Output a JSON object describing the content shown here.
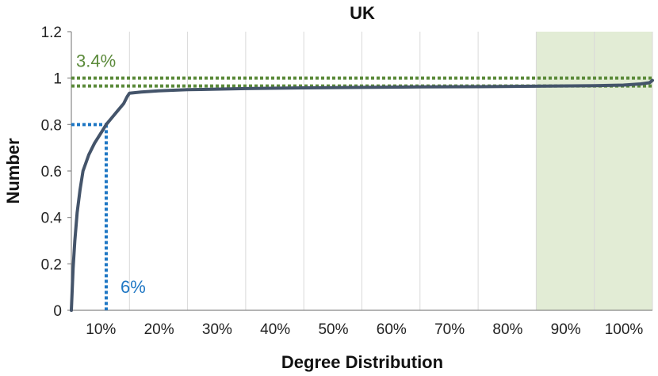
{
  "chart_data": {
    "type": "line",
    "title": "UK",
    "xlabel": "Degree Distribution",
    "ylabel": "Number",
    "xlim": [
      0,
      100
    ],
    "ylim": [
      0,
      1.2
    ],
    "x_ticks": [
      10,
      20,
      30,
      40,
      50,
      60,
      70,
      80,
      90,
      100
    ],
    "x_tick_labels": [
      "10%",
      "20%",
      "30%",
      "40%",
      "50%",
      "60%",
      "70%",
      "80%",
      "90%",
      "100%"
    ],
    "y_ticks": [
      0,
      0.2,
      0.4,
      0.6,
      0.8,
      1.0,
      1.2
    ],
    "y_tick_labels": [
      "0",
      "0.2",
      "0.4",
      "0.6",
      "0.8",
      "1",
      "1.2"
    ],
    "grid": "vertical",
    "series": [
      {
        "color": "#44546a",
        "x": [
          0,
          0.3,
          0.6,
          1,
          1.5,
          2,
          3,
          4,
          5,
          6,
          7,
          8,
          9,
          9.6,
          10,
          12,
          15,
          20,
          30,
          40,
          50,
          60,
          70,
          80,
          90,
          95,
          98,
          99.5,
          100
        ],
        "y": [
          0,
          0.18,
          0.3,
          0.42,
          0.52,
          0.6,
          0.67,
          0.72,
          0.76,
          0.8,
          0.83,
          0.86,
          0.89,
          0.92,
          0.935,
          0.94,
          0.945,
          0.95,
          0.955,
          0.958,
          0.96,
          0.962,
          0.963,
          0.965,
          0.967,
          0.97,
          0.975,
          0.98,
          0.99
        ]
      }
    ],
    "shaded_region": {
      "x": [
        80,
        100
      ],
      "color": "#e2ecd5"
    },
    "reference_lines": {
      "blue": {
        "x": 6,
        "y": 0.8,
        "label": "6%",
        "color": "#1f77c4"
      },
      "green": {
        "y_upper": 1.0,
        "y_lower": 0.966,
        "label": "3.4%",
        "color": "#5b8a3a"
      }
    }
  }
}
